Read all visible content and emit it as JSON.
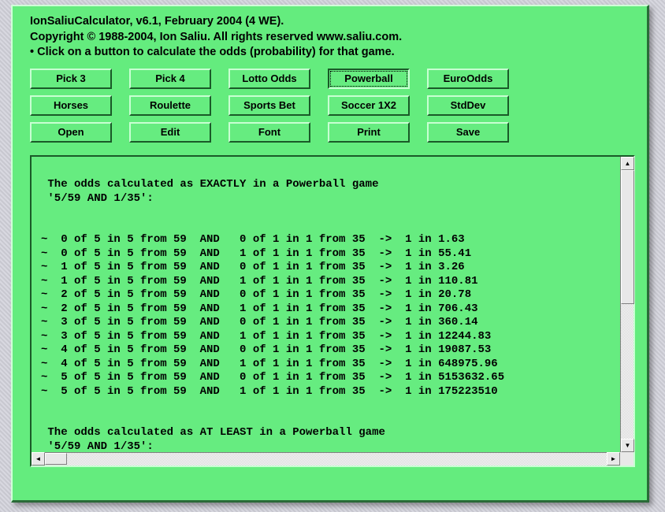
{
  "header": {
    "line1": "IonSaliuCalculator, v6.1, February 2004 (4 WE).",
    "line2": "Copyright © 1988-2004, Ion Saliu. All rights reserved www.saliu.com.",
    "line3": "• Click on a button to calculate the odds (probability) for that game."
  },
  "buttons": {
    "rows": [
      [
        {
          "name": "pick3-button",
          "label": "Pick 3",
          "selected": false
        },
        {
          "name": "pick4-button",
          "label": "Pick 4",
          "selected": false
        },
        {
          "name": "lotto-odds-button",
          "label": "Lotto Odds",
          "selected": false
        },
        {
          "name": "powerball-button",
          "label": "Powerball",
          "selected": true
        },
        {
          "name": "euroodds-button",
          "label": "EuroOdds",
          "selected": false
        }
      ],
      [
        {
          "name": "horses-button",
          "label": "Horses",
          "selected": false
        },
        {
          "name": "roulette-button",
          "label": "Roulette",
          "selected": false
        },
        {
          "name": "sports-bet-button",
          "label": "Sports Bet",
          "selected": false
        },
        {
          "name": "soccer-1x2-button",
          "label": "Soccer 1X2",
          "selected": false
        },
        {
          "name": "stddev-button",
          "label": "StdDev",
          "selected": false
        }
      ],
      [
        {
          "name": "open-button",
          "label": "Open",
          "selected": false
        },
        {
          "name": "edit-button",
          "label": "Edit",
          "selected": false
        },
        {
          "name": "font-button",
          "label": "Font",
          "selected": false
        },
        {
          "name": "print-button",
          "label": "Print",
          "selected": false
        },
        {
          "name": "save-button",
          "label": "Save",
          "selected": false
        }
      ]
    ]
  },
  "colors": {
    "panel_bg": "#64ec7e",
    "panel_light": "#d0ffd8",
    "panel_dark": "#2a6a38",
    "button_bg": "#66ec80",
    "text": "#000000",
    "scrollbar_bg": "#e8e8e8"
  },
  "output": {
    "text": "\n The odds calculated as EXACTLY in a Powerball game\n '5/59 AND 1/35':\n\n\n~  0 of 5 in 5 from 59  AND   0 of 1 in 1 from 35  ->  1 in 1.63\n~  0 of 5 in 5 from 59  AND   1 of 1 in 1 from 35  ->  1 in 55.41\n~  1 of 5 in 5 from 59  AND   0 of 1 in 1 from 35  ->  1 in 3.26\n~  1 of 5 in 5 from 59  AND   1 of 1 in 1 from 35  ->  1 in 110.81\n~  2 of 5 in 5 from 59  AND   0 of 1 in 1 from 35  ->  1 in 20.78\n~  2 of 5 in 5 from 59  AND   1 of 1 in 1 from 35  ->  1 in 706.43\n~  3 of 5 in 5 from 59  AND   0 of 1 in 1 from 35  ->  1 in 360.14\n~  3 of 5 in 5 from 59  AND   1 of 1 in 1 from 35  ->  1 in 12244.83\n~  4 of 5 in 5 from 59  AND   0 of 1 in 1 from 35  ->  1 in 19087.53\n~  4 of 5 in 5 from 59  AND   1 of 1 in 1 from 35  ->  1 in 648975.96\n~  5 of 5 in 5 from 59  AND   0 of 1 in 1 from 35  ->  1 in 5153632.65\n~  5 of 5 in 5 from 59  AND   1 of 1 in 1 from 35  ->  1 in 175223510\n\n\n The odds calculated as AT LEAST in a Powerball game\n '5/59 AND 1/35':"
  }
}
